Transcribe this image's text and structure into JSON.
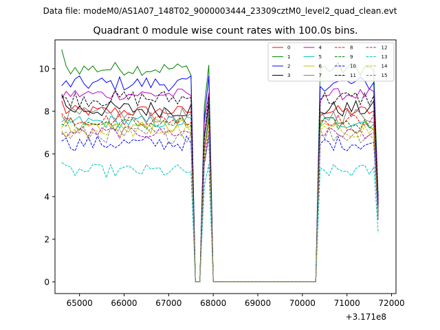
{
  "suptitle": "Data file: modeM0/AS1A07_148T02_9000003444_23309cztM0_level2_quad_clean.evt",
  "chart_data": {
    "type": "line",
    "title": "Quadrant 0 module wise count rates with 100.0s bins.",
    "xlabel": "",
    "ylabel": "",
    "x_offset_label": "+3.171e8",
    "xlim": [
      64450,
      72100
    ],
    "ylim": [
      -0.55,
      11.35
    ],
    "xticks": [
      65000,
      66000,
      67000,
      68000,
      69000,
      70000,
      71000,
      72000
    ],
    "yticks": [
      0,
      2,
      4,
      6,
      8,
      10
    ],
    "grid": false,
    "legend_position": "top-right",
    "segments": [
      {
        "x_start": 64600,
        "n": 30
      },
      {
        "x_start": 70300,
        "n": 14
      }
    ],
    "series": [
      {
        "name": "0",
        "color": "#ff0000",
        "dash": "solid",
        "level": 8.0,
        "seg1_start": 8.5,
        "seg2_end": 3.3
      },
      {
        "name": "1",
        "color": "#008000",
        "dash": "solid",
        "level": 10.0,
        "seg1_start": 10.9,
        "seg2_end": 4.0
      },
      {
        "name": "2",
        "color": "#0000ff",
        "dash": "solid",
        "level": 9.3,
        "seg1_start": 9.2,
        "seg2_end": 3.8
      },
      {
        "name": "3",
        "color": "#000000",
        "dash": "solid",
        "level": 8.1,
        "seg1_start": 8.8,
        "seg2_end": 3.5
      },
      {
        "name": "4",
        "color": "#bf00bf",
        "dash": "solid",
        "level": 8.8,
        "seg1_start": 8.6,
        "seg2_end": 3.7
      },
      {
        "name": "5",
        "color": "#00bfbf",
        "dash": "solid",
        "level": 7.5,
        "seg1_start": 7.5,
        "seg2_end": 3.2
      },
      {
        "name": "6",
        "color": "#bfbf00",
        "dash": "solid",
        "level": 7.3,
        "seg1_start": 7.2,
        "seg2_end": 3.1
      },
      {
        "name": "7",
        "color": "#808080",
        "dash": "solid",
        "level": 7.8,
        "seg1_start": 7.8,
        "seg2_end": 3.3
      },
      {
        "name": "8",
        "color": "#ff0000",
        "dash": "dashed",
        "level": 7.6,
        "seg1_start": 7.9,
        "seg2_end": 3.2
      },
      {
        "name": "9",
        "color": "#008000",
        "dash": "dashed",
        "level": 7.4,
        "seg1_start": 7.4,
        "seg2_end": 3.1
      },
      {
        "name": "10",
        "color": "#0000ff",
        "dash": "dashed",
        "level": 6.5,
        "seg1_start": 6.6,
        "seg2_end": 2.9
      },
      {
        "name": "11",
        "color": "#000000",
        "dash": "dashed",
        "level": 8.6,
        "seg1_start": 8.7,
        "seg2_end": 3.6
      },
      {
        "name": "12",
        "color": "#bf00bf",
        "dash": "dashed",
        "level": 7.0,
        "seg1_start": 7.0,
        "seg2_end": 3.0
      },
      {
        "name": "13",
        "color": "#00bfbf",
        "dash": "dashed",
        "level": 5.2,
        "seg1_start": 5.6,
        "seg2_end": 2.3
      },
      {
        "name": "14",
        "color": "#bfbf00",
        "dash": "dashed",
        "level": 7.1,
        "seg1_start": 7.1,
        "seg2_end": 3.0
      },
      {
        "name": "15",
        "color": "#808080",
        "dash": "dashed",
        "level": 6.9,
        "seg1_start": 6.9,
        "seg2_end": 2.9
      }
    ]
  }
}
